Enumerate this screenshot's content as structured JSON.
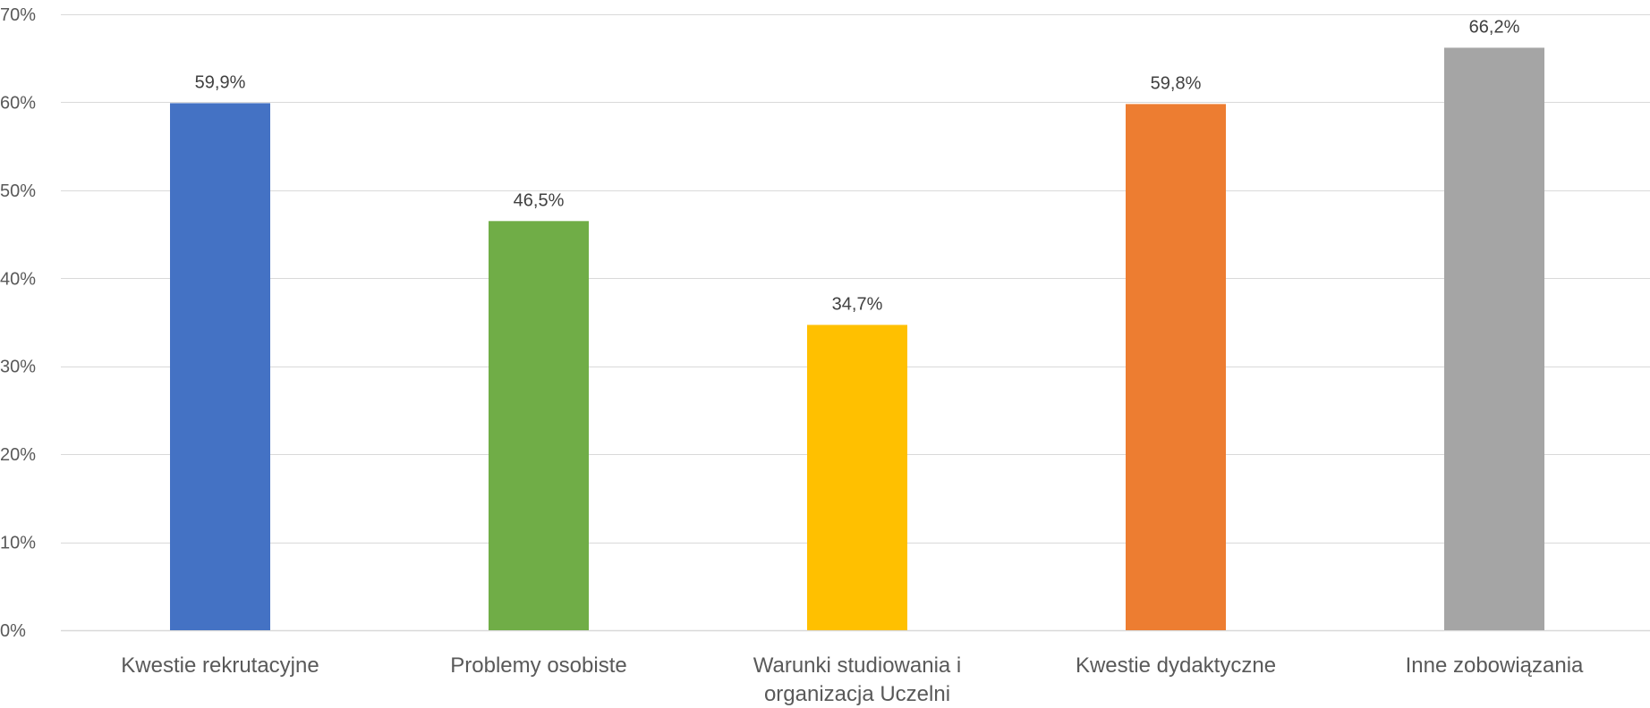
{
  "chart_data": {
    "type": "bar",
    "categories": [
      [
        "Kwestie rekrutacyjne"
      ],
      [
        "Problemy osobiste"
      ],
      [
        "Warunki studiowania i",
        "organizacja Uczelni"
      ],
      [
        "Kwestie dydaktyczne"
      ],
      [
        "Inne zobowiązania"
      ]
    ],
    "values": [
      59.9,
      46.5,
      34.7,
      59.8,
      66.2
    ],
    "data_labels": [
      "59,9%",
      "46,5%",
      "34,7%",
      "59,8%",
      "66,2%"
    ],
    "colors": [
      "#4472C4",
      "#70AD47",
      "#FFC000",
      "#ED7D31",
      "#A5A5A5"
    ],
    "ylim": [
      0,
      70
    ],
    "yticks": [
      0,
      10,
      20,
      30,
      40,
      50,
      60,
      70
    ],
    "ytick_labels": [
      "0%",
      "10%",
      "20%",
      "30%",
      "40%",
      "50%",
      "60%",
      "70%"
    ],
    "grid": true,
    "gridline_color": "#D9D9D9",
    "legend": "none",
    "title": "",
    "xlabel": "",
    "ylabel": ""
  }
}
